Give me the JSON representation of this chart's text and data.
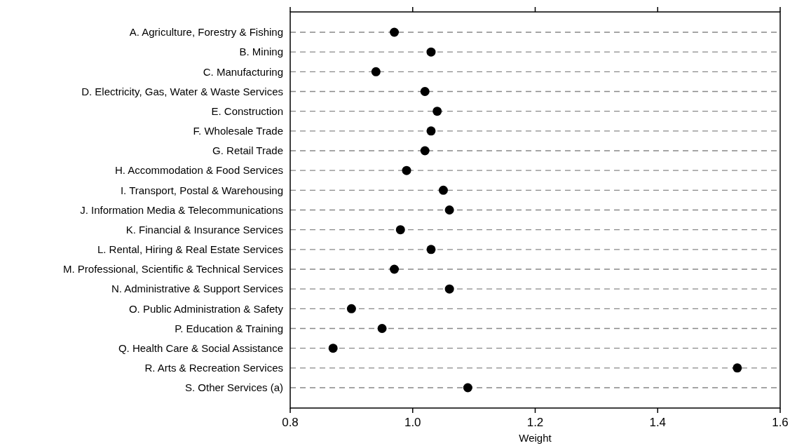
{
  "chart_data": {
    "type": "scatter",
    "orientation": "horizontal",
    "xlabel": "Weight",
    "categories": [
      "A. Agriculture, Forestry & Fishing",
      "B. Mining",
      "C. Manufacturing",
      "D. Electricity, Gas, Water & Waste Services",
      "E. Construction",
      "F. Wholesale Trade",
      "G. Retail Trade",
      "H. Accommodation & Food Services",
      "I. Transport, Postal & Warehousing",
      "J. Information Media & Telecommunications",
      "K. Financial & Insurance Services",
      "L. Rental, Hiring & Real Estate Services",
      "M. Professional, Scientific & Technical Services",
      "N. Administrative & Support Services",
      "O. Public Administration & Safety",
      "P. Education & Training",
      "Q. Health Care & Social Assistance",
      "R. Arts & Recreation Services",
      "S. Other Services (a)"
    ],
    "series": [
      {
        "color": "#000000",
        "values": [
          0.97,
          1.03,
          0.94,
          1.02,
          1.04,
          1.03,
          1.02,
          0.99,
          1.05,
          1.06,
          0.98,
          1.03,
          0.97,
          1.06,
          0.9,
          0.95,
          0.87,
          1.53,
          1.09
        ]
      }
    ],
    "xlim": [
      0.8,
      1.6
    ],
    "xticks": [
      {
        "value": 0.8,
        "label": "0.8"
      },
      {
        "value": 1.0,
        "label": "1.0"
      },
      {
        "value": 1.2,
        "label": "1.2"
      },
      {
        "value": 1.4,
        "label": "1.4"
      },
      {
        "value": 1.6,
        "label": "1.6"
      }
    ],
    "grid": "y",
    "marker": "circle"
  }
}
